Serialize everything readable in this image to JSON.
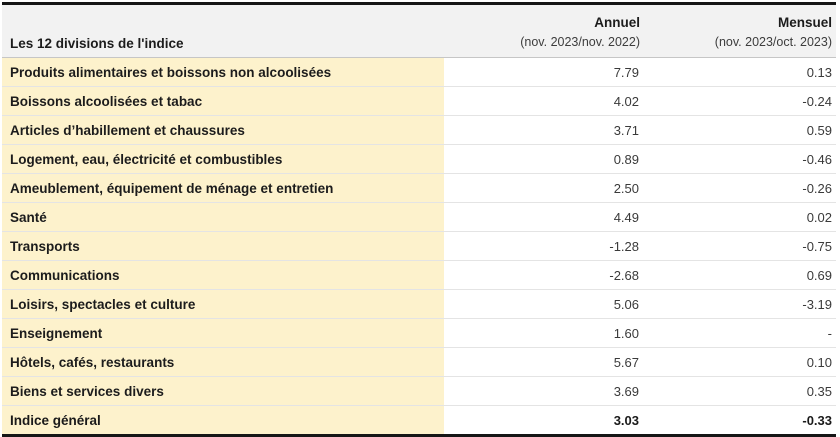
{
  "colors": {
    "label_column_background": "#fdf2cc",
    "header_background": "#f2f2f2",
    "thick_rule": "#161616",
    "row_separator": "#e4e4e4",
    "header_separator": "#c6c6c6",
    "text_dark": "#1c1c1c",
    "text_number": "#3a3a3a"
  },
  "chart_data": {
    "type": "table",
    "label_header": "Les 12 divisions de l'indice",
    "columns": [
      {
        "title": "Annuel",
        "subtitle": "(nov. 2023/nov. 2022)"
      },
      {
        "title": "Mensuel",
        "subtitle": "(nov. 2023/oct. 2023)"
      }
    ],
    "rows": [
      {
        "label": "Produits alimentaires et boissons non alcoolisées",
        "annual": "7.79",
        "monthly": "0.13"
      },
      {
        "label": "Boissons alcoolisées et tabac",
        "annual": "4.02",
        "monthly": "-0.24"
      },
      {
        "label": "Articles d’habillement et chaussures",
        "annual": "3.71",
        "monthly": "0.59"
      },
      {
        "label": "Logement, eau, électricité et combustibles",
        "annual": "0.89",
        "monthly": "-0.46"
      },
      {
        "label": "Ameublement, équipement de ménage et entretien",
        "annual": "2.50",
        "monthly": "-0.26"
      },
      {
        "label": "Santé",
        "annual": "4.49",
        "monthly": "0.02"
      },
      {
        "label": "Transports",
        "annual": "-1.28",
        "monthly": "-0.75"
      },
      {
        "label": "Communications",
        "annual": "-2.68",
        "monthly": "0.69"
      },
      {
        "label": "Loisirs, spectacles et culture",
        "annual": "5.06",
        "monthly": "-3.19"
      },
      {
        "label": "Enseignement",
        "annual": "1.60",
        "monthly": "-"
      },
      {
        "label": "Hôtels, cafés, restaurants",
        "annual": "5.67",
        "monthly": "0.10"
      },
      {
        "label": "Biens et services divers",
        "annual": "3.69",
        "monthly": "0.35"
      },
      {
        "label": "Indice général",
        "annual": "3.03",
        "monthly": "-0.33",
        "is_total": true
      }
    ]
  }
}
